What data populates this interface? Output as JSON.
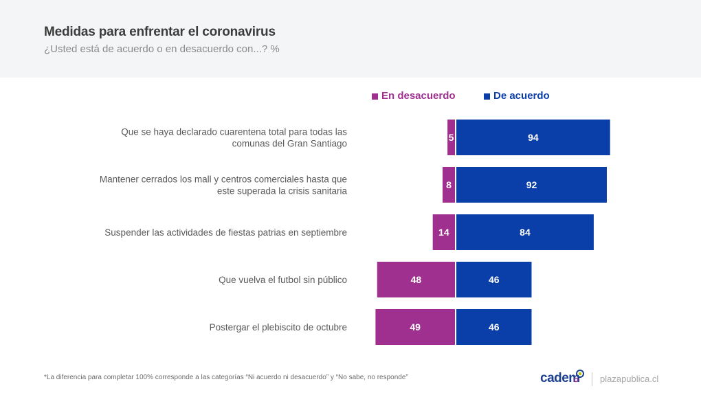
{
  "header": {
    "title": "Medidas para enfrentar el coronavirus",
    "subtitle": "¿Usted está de acuerdo o en desacuerdo con...? %"
  },
  "legend": {
    "items": [
      {
        "label": "En desacuerdo",
        "color": "#a0308f"
      },
      {
        "label": "De acuerdo",
        "color": "#0a3ea8"
      }
    ]
  },
  "chart_data": {
    "type": "bar",
    "orientation": "horizontal-diverging",
    "title": "Medidas para enfrentar el coronavirus",
    "subtitle": "¿Usted está de acuerdo o en desacuerdo con...? %",
    "xlabel": "",
    "ylabel": "",
    "legend_position": "top",
    "grid": false,
    "categories": [
      [
        "Que se haya declarado cuarentena total para todas las",
        "comunas del Gran Santiago"
      ],
      [
        "Mantener cerrados los mall y centros comerciales hasta que",
        "este superada la crisis sanitaria"
      ],
      [
        "Suspender las actividades de fiestas patrias en septiembre"
      ],
      [
        "Que vuelva el futbol sin público"
      ],
      [
        "Postergar el plebiscito de octubre"
      ]
    ],
    "series": [
      {
        "name": "En desacuerdo",
        "color": "#a0308f",
        "direction": "left",
        "values": [
          5,
          8,
          14,
          48,
          49
        ]
      },
      {
        "name": "De acuerdo",
        "color": "#0a3ea8",
        "direction": "right",
        "values": [
          94,
          92,
          84,
          46,
          46
        ]
      }
    ],
    "unit": "%"
  },
  "footer": {
    "footnote": "*La diferencia para completar 100% corresponde a las categorías “Ni acuerdo ni desacuerdo” y “No sabe, no responde”",
    "brand": "cadem",
    "site": "plazapublica.cl"
  }
}
